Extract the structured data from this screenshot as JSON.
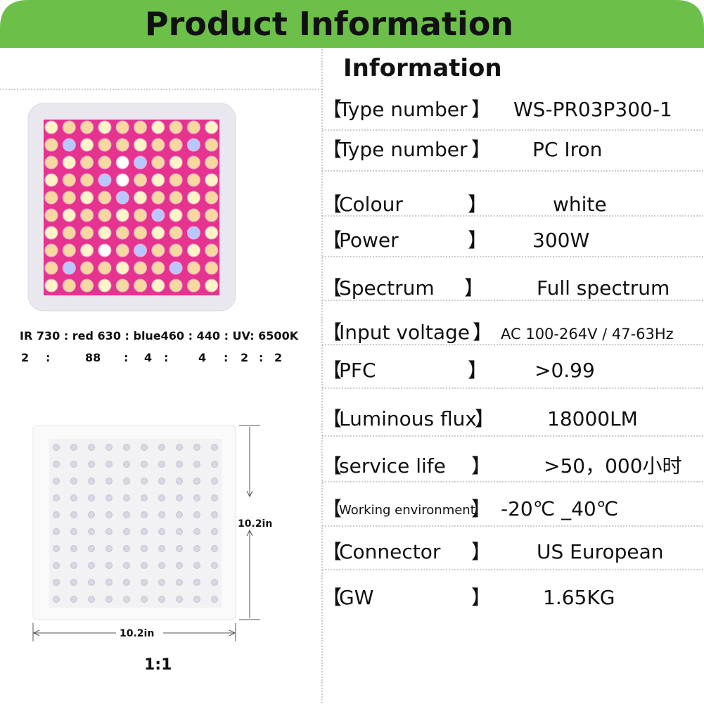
{
  "header": {
    "title": "Product Information"
  },
  "info": {
    "title": "Information",
    "rows": [
      {
        "open": "【",
        "label": "Type number",
        "close": "】",
        "value": "WS-PR03P300-1"
      },
      {
        "open": "【",
        "label": "Type number",
        "close": "】",
        "value": "PC Iron"
      },
      {
        "open": "【",
        "label": "Colour",
        "close": "】",
        "value": "white"
      },
      {
        "open": "【",
        "label": "Power",
        "close": "】",
        "value": "300W"
      },
      {
        "open": "【",
        "label": "Spectrum",
        "close": "】",
        "value": "Full spectrum"
      },
      {
        "open": "【",
        "label": "Input voltage",
        "close": "】",
        "value": "AC 100-264V / 47-63Hz"
      },
      {
        "open": "【",
        "label": "PFC",
        "close": "】",
        "value": ">0.99"
      },
      {
        "open": "【",
        "label": "Luminous flux",
        "close": "】",
        "value": "18000LM"
      },
      {
        "open": "【",
        "label": "service life",
        "close": "】",
        "value": ">50，000小时"
      },
      {
        "open": "【",
        "label": "Working environment",
        "close": "】",
        "value": "-20℃ _40℃"
      },
      {
        "open": "【",
        "label": "Connector",
        "close": "】",
        "value": "US  European"
      },
      {
        "open": "【",
        "label": "GW",
        "close": "】",
        "value": "1.65KG"
      }
    ]
  },
  "spectrum": {
    "names": "IR 730 : red 630 :  blue460 : 440 : UV: 6500K",
    "ratios": [
      "2",
      ":",
      "88",
      ":",
      "4",
      ":",
      "4",
      ":",
      "2",
      ":",
      "2"
    ]
  },
  "dimensions": {
    "height": "10.2in",
    "width": "10.2in",
    "scale": "1:1"
  }
}
